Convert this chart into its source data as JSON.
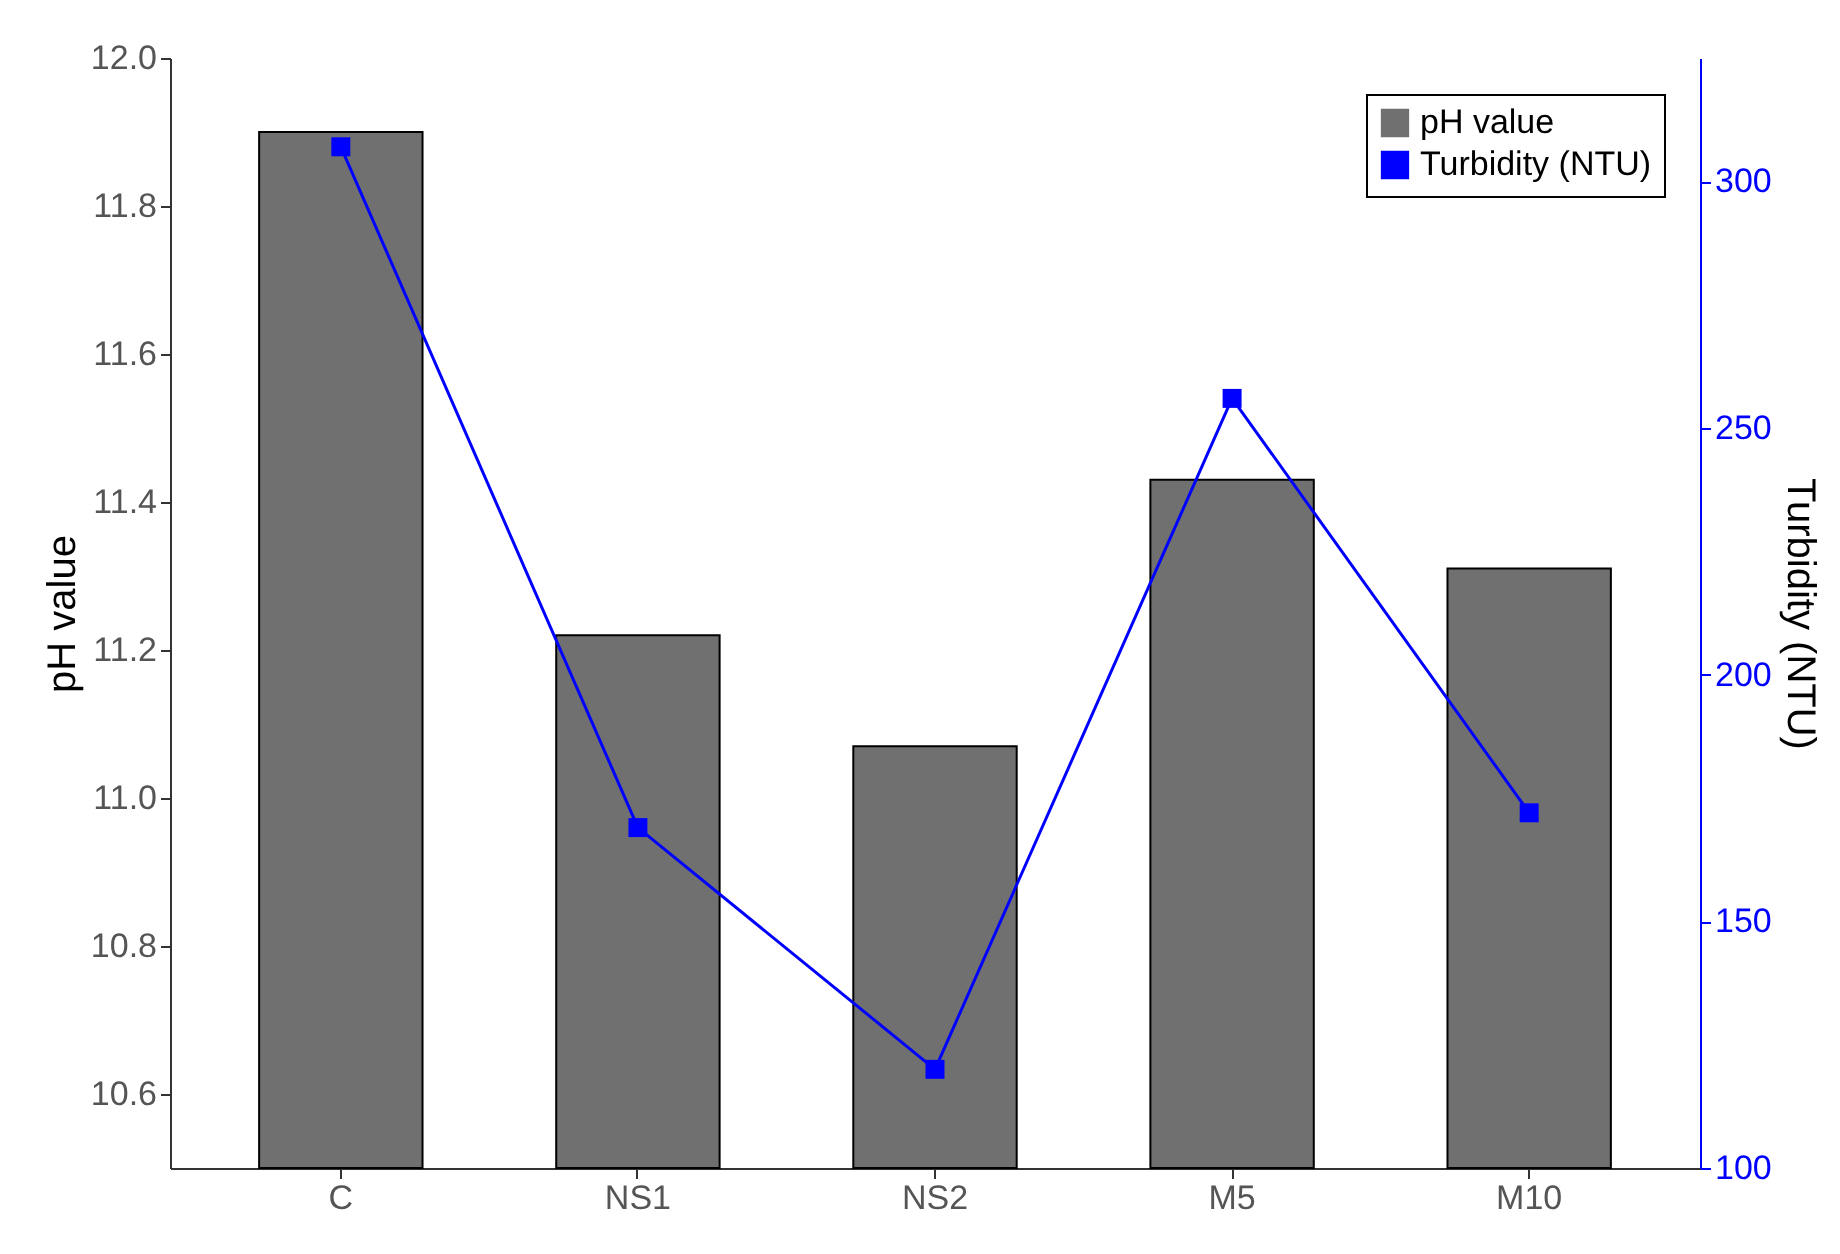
{
  "chart_data": {
    "type": "bar",
    "ylabel": "pH value",
    "y2label": "Turbidity (NTU)",
    "categories": [
      "C",
      "NS1",
      "NS2",
      "M5",
      "M10"
    ],
    "series": [
      {
        "name": "pH value",
        "color": "#707070",
        "values": [
          11.9,
          11.22,
          11.07,
          11.43,
          11.31
        ]
      },
      {
        "name": "Turbidity (NTU)",
        "type": "line",
        "axis": "y2",
        "color": "#0000ff",
        "values": [
          307,
          169,
          120,
          256,
          172
        ]
      }
    ],
    "ylim": [
      10.5,
      12.0
    ],
    "yticks": [
      {
        "value": 10.6,
        "label": "10.6"
      },
      {
        "value": 10.8,
        "label": "10.8"
      },
      {
        "value": 11,
        "label": "11.0"
      },
      {
        "value": 11.2,
        "label": "11.2"
      },
      {
        "value": 11.4,
        "label": "11.4"
      },
      {
        "value": 11.6,
        "label": "11.6"
      },
      {
        "value": 11.8,
        "label": "11.8"
      },
      {
        "value": 12,
        "label": "12.0"
      }
    ],
    "y2lim": [
      100,
      325
    ],
    "y2ticks": [
      100,
      150,
      200,
      250,
      300
    ],
    "legend": "top right",
    "marker": "square",
    "grid": false
  }
}
